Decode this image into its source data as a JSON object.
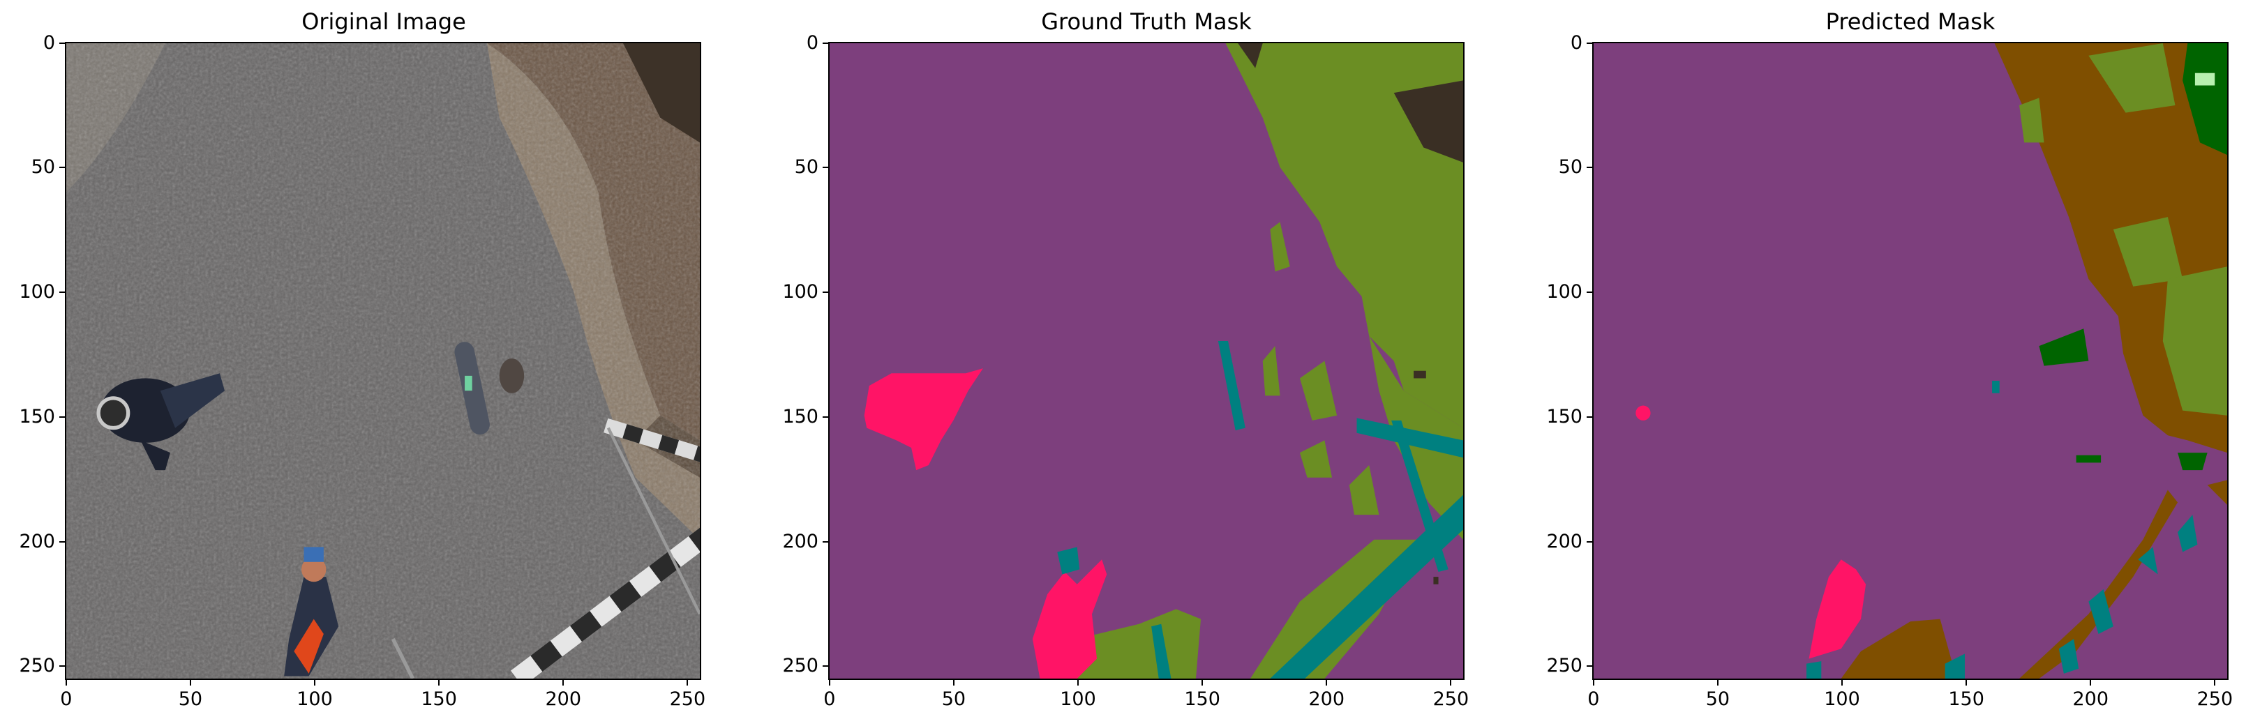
{
  "panels": [
    {
      "title": "Original Image"
    },
    {
      "title": "Ground Truth Mask"
    },
    {
      "title": "Predicted Mask"
    }
  ],
  "axis": {
    "x_ticks": [
      "0",
      "50",
      "100",
      "150",
      "200",
      "250"
    ],
    "y_ticks": [
      "0",
      "50",
      "100",
      "150",
      "200",
      "250"
    ],
    "range": [
      0,
      255
    ]
  },
  "mask_colors": {
    "background": "#7d3f7d",
    "vegetation": "#6b8e23",
    "person": "#ff1466",
    "object": "#008080",
    "soil": "#7f4f00",
    "tree": "#006400",
    "dark": "#3a2f24"
  }
}
